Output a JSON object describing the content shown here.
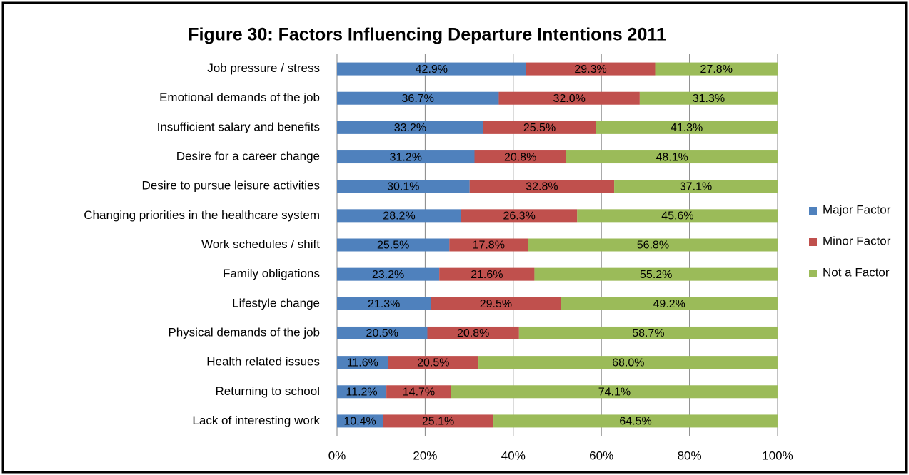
{
  "chart_data": {
    "type": "stacked-barh",
    "title": "Figure 30: Factors Influencing Departure Intentions 2011",
    "categories": [
      "Job pressure / stress",
      "Emotional demands of the job",
      "Insufficient salary and benefits",
      "Desire for a career change",
      "Desire to pursue leisure activities",
      "Changing priorities in the healthcare system",
      "Work schedules / shift",
      "Family obligations",
      "Lifestyle change",
      "Physical demands of the job",
      "Health related issues",
      "Returning to school",
      "Lack of interesting work"
    ],
    "series": [
      {
        "name": "Major Factor",
        "color": "#4f81bd",
        "values": [
          42.9,
          36.7,
          33.2,
          31.2,
          30.1,
          28.2,
          25.5,
          23.2,
          21.3,
          20.5,
          11.6,
          11.2,
          10.4
        ],
        "value_labels": [
          "42.9%",
          "36.7%",
          "33.2%",
          "31.2%",
          "30.1%",
          "28.2%",
          "25.5%",
          "23.2%",
          "21.3%",
          "20.5%",
          "11.6%",
          "11.2%",
          "10.4%"
        ]
      },
      {
        "name": "Minor Factor",
        "color": "#c0504d",
        "values": [
          29.3,
          32.0,
          25.5,
          20.8,
          32.8,
          26.3,
          17.8,
          21.6,
          29.5,
          20.8,
          20.5,
          14.7,
          25.1
        ],
        "value_labels": [
          "29.3%",
          "32.0%",
          "25.5%",
          "20.8%",
          "32.8%",
          "26.3%",
          "17.8%",
          "21.6%",
          "29.5%",
          "20.8%",
          "20.5%",
          "14.7%",
          "25.1%"
        ]
      },
      {
        "name": "Not a Factor",
        "color": "#9bbb59",
        "values": [
          27.8,
          31.3,
          41.3,
          48.1,
          37.1,
          45.6,
          56.8,
          55.2,
          49.2,
          58.7,
          68.0,
          74.1,
          64.5
        ],
        "value_labels": [
          "27.8%",
          "31.3%",
          "41.3%",
          "48.1%",
          "37.1%",
          "45.6%",
          "56.8%",
          "55.2%",
          "49.2%",
          "58.7%",
          "68.0%",
          "74.1%",
          "64.5%"
        ]
      }
    ],
    "xlim": [
      0,
      100
    ],
    "xticks": [
      {
        "value": 0,
        "label": "0%"
      },
      {
        "value": 20,
        "label": "20%"
      },
      {
        "value": 40,
        "label": "40%"
      },
      {
        "value": 60,
        "label": "60%"
      },
      {
        "value": 80,
        "label": "80%"
      },
      {
        "value": 100,
        "label": "100%"
      }
    ],
    "grid": true,
    "legend": "right"
  }
}
